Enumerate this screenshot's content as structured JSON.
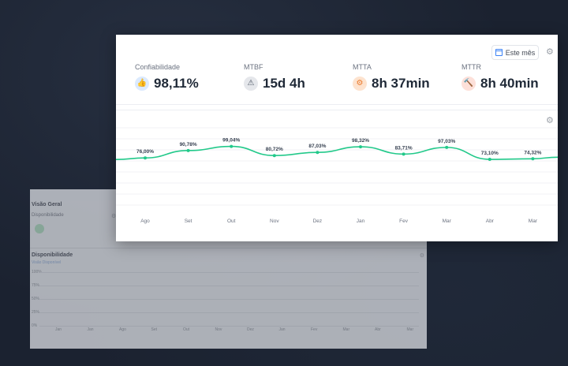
{
  "background_panel": {
    "title": "Visão Geral",
    "subtitle": "Disponibilidade",
    "section": "Disponibilidade",
    "link": "Visão Disponível",
    "yticks": [
      "100%",
      "75%",
      "50%",
      "25%",
      "0%"
    ],
    "months": [
      "Jan",
      "Jan",
      "Ago",
      "Set",
      "Out",
      "Nov",
      "Dez",
      "Jan",
      "Fev",
      "Mar",
      "Abr",
      "Mar"
    ]
  },
  "header": {
    "period_button": "Este mês",
    "period_icon": "calendar-icon",
    "settings_icon": "gear-icon"
  },
  "metrics": [
    {
      "label": "Confiabilidade",
      "value": "98,11%",
      "icon": "thumbs-up-icon",
      "color": "#2563eb"
    },
    {
      "label": "MTBF",
      "value": "15d 4h",
      "icon": "warning-triangle-icon",
      "color": "#4b5563"
    },
    {
      "label": "MTTA",
      "value": "8h 37min",
      "icon": "gear-alert-icon",
      "color": "#ea7a2c"
    },
    {
      "label": "MTTR",
      "value": "8h 40min",
      "icon": "hammer-icon",
      "color": "#e2542d"
    }
  ],
  "chart_data": {
    "type": "line",
    "categories": [
      "Ago",
      "Set",
      "Out",
      "Nov",
      "Dez",
      "Jan",
      "Fev",
      "Mar",
      "Abr",
      "Mar"
    ],
    "series": [
      {
        "values": [
          76.0,
          90.78,
          99.04,
          80.72,
          87.03,
          98.32,
          83.71,
          97.03,
          73.1,
          74.32
        ],
        "labels": [
          "76,00%",
          "90,78%",
          "99,04%",
          "80,72%",
          "87,03%",
          "98,32%",
          "83,71%",
          "97,03%",
          "73,10%",
          "74,32%"
        ],
        "color": "#22c98a"
      }
    ],
    "ylim": [
      0,
      100
    ],
    "grid": true,
    "legend": "none"
  }
}
